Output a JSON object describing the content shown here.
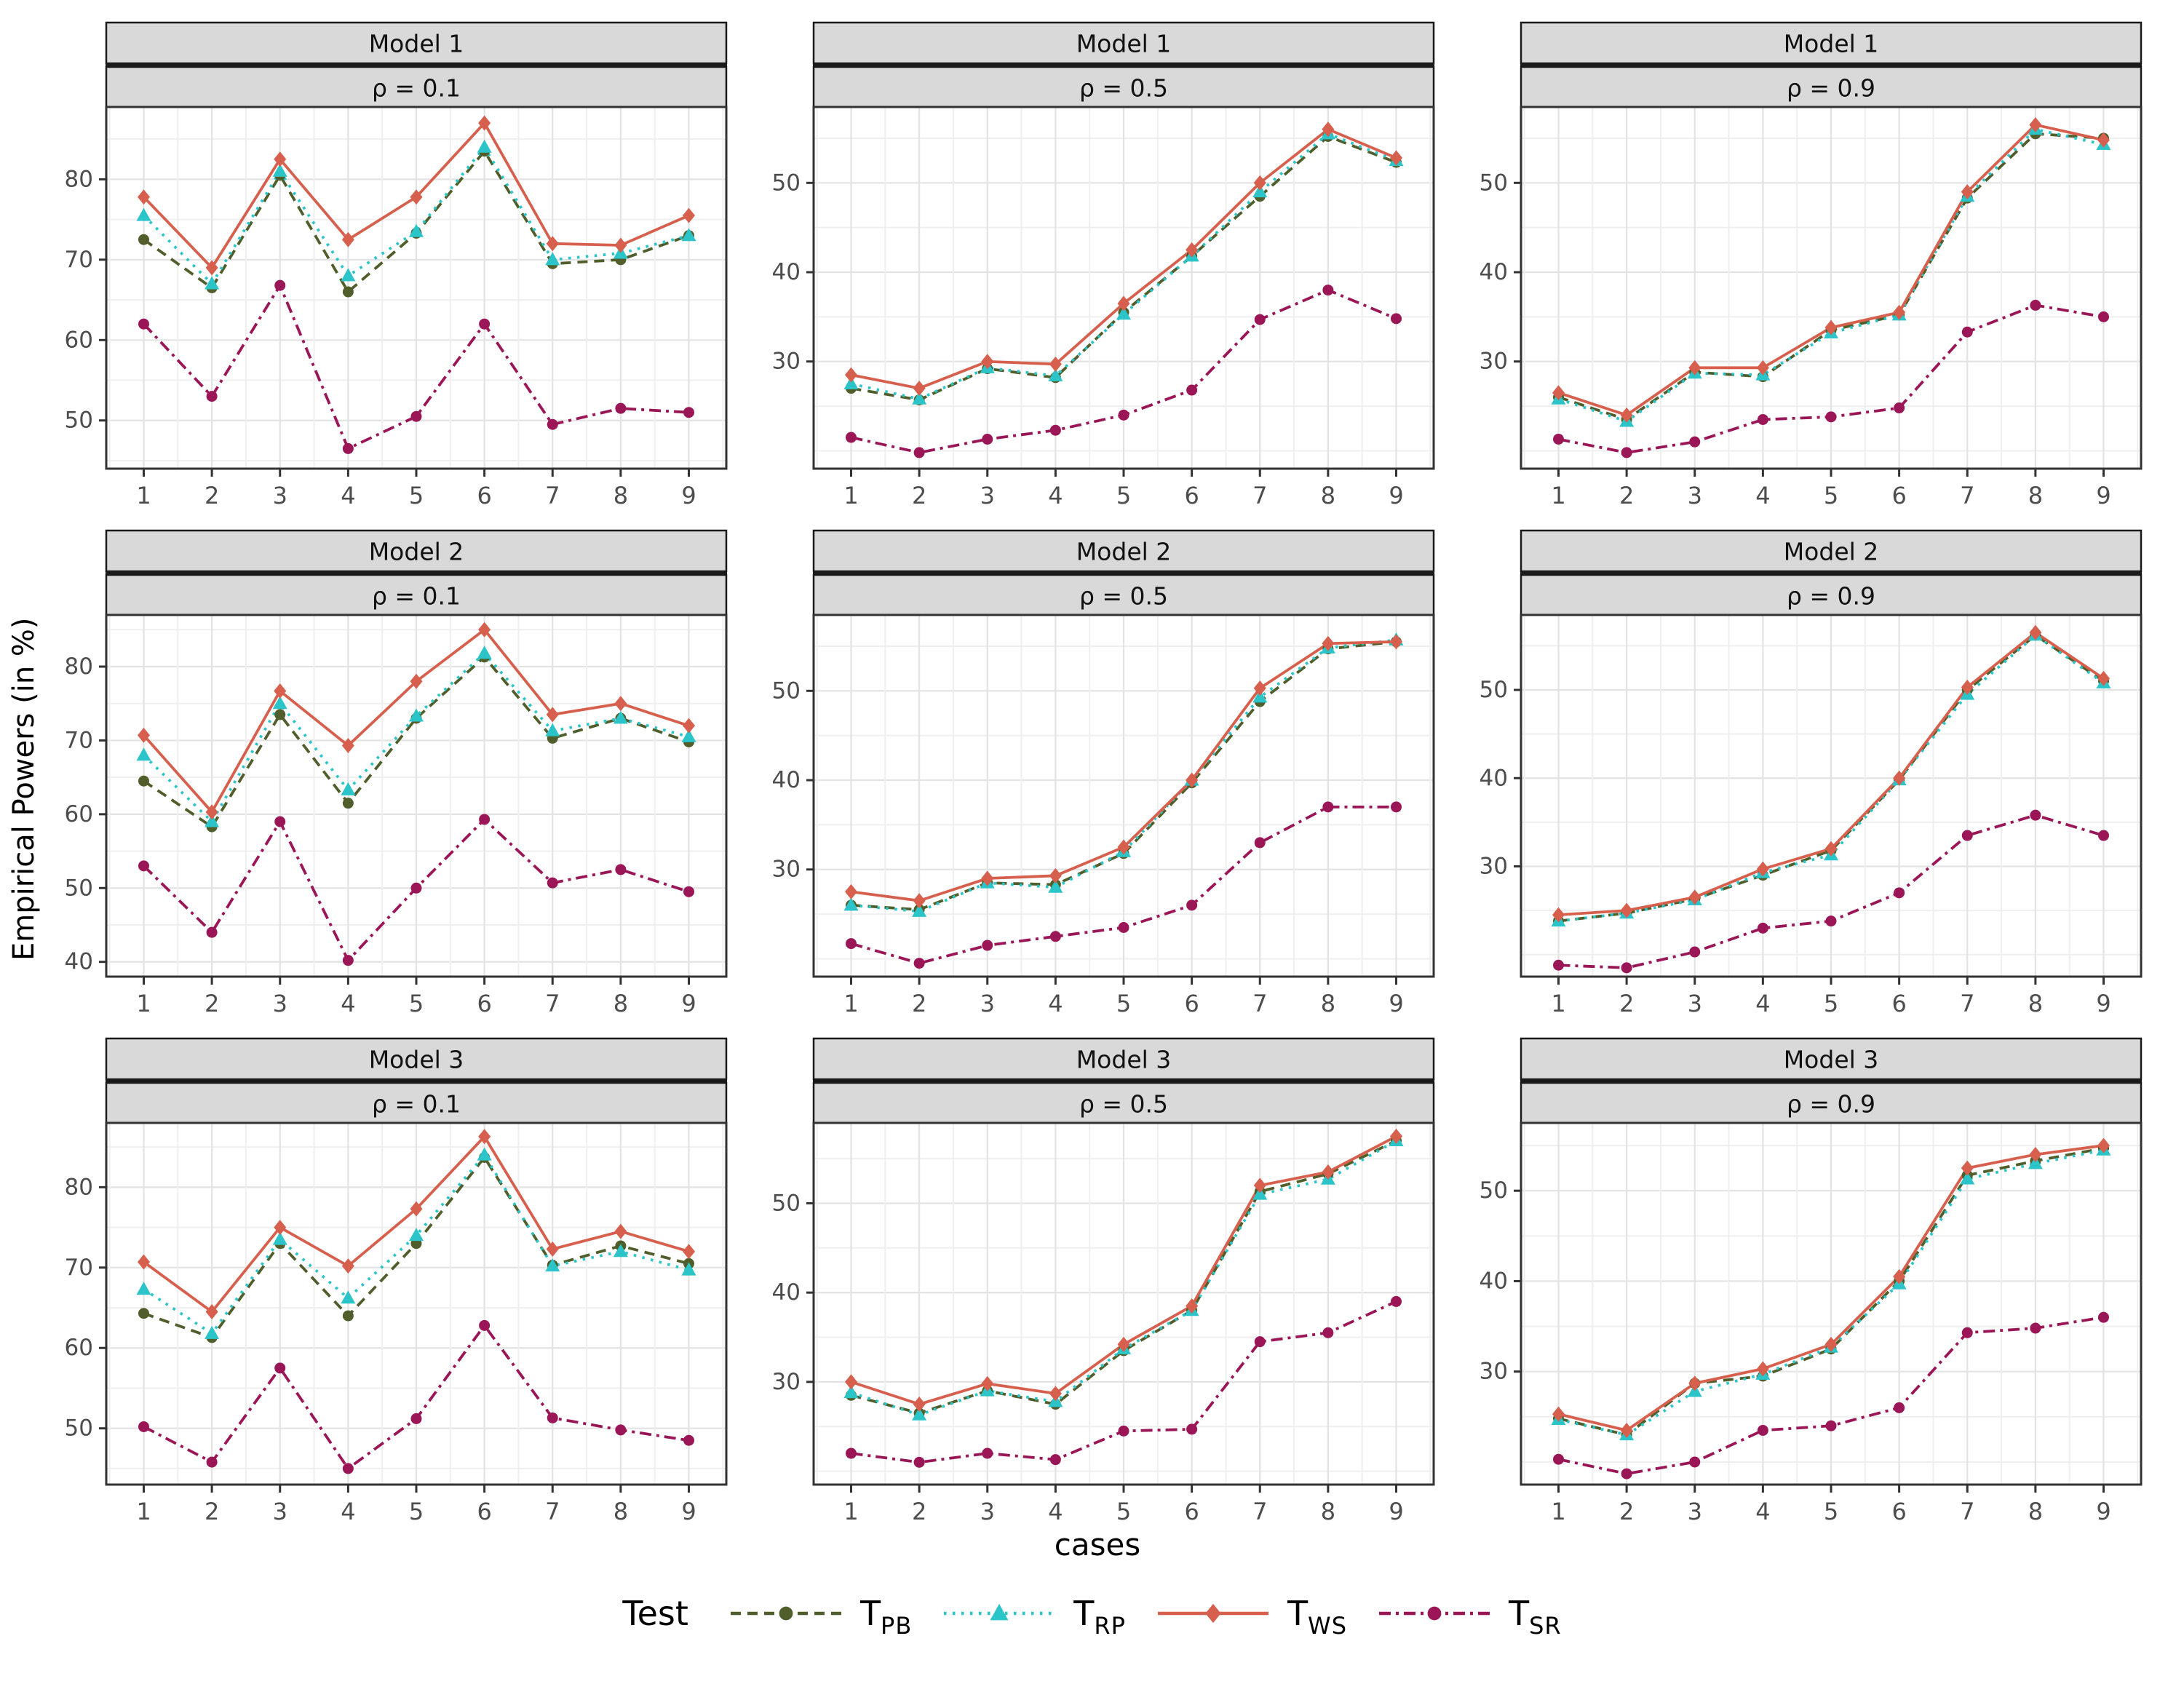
{
  "figure": {
    "y_axis_label": "Empirical Powers (in %)",
    "x_axis_label": "cases",
    "legend": {
      "title": "Test",
      "entries": [
        {
          "id": "TPB",
          "main": "T",
          "sub": "PB",
          "color": "#4F5E2A",
          "dash": "14 9",
          "marker": "circle"
        },
        {
          "id": "TRP",
          "main": "T",
          "sub": "RP",
          "color": "#2BC5C9",
          "dash": "3.5 8.5",
          "marker": "triangle"
        },
        {
          "id": "TWS",
          "main": "T",
          "sub": "WS",
          "color": "#D6604D",
          "dash": "",
          "marker": "diamond"
        },
        {
          "id": "TSR",
          "main": "T",
          "sub": "SR",
          "color": "#9A1656",
          "dash": "16 7 4 7",
          "marker": "circle"
        }
      ]
    }
  },
  "style": {
    "strip_fill": "#D9D9D9",
    "strip_border": "#1A1A1A",
    "panel_border": "#333333",
    "grid_major": "#E3E3E3",
    "grid_minor": "#EFEFEF",
    "tick_color": "#333333",
    "tick_label_color": "#4D4D4D",
    "strip_text_color": "#111111"
  },
  "chart_data": {
    "type": "line",
    "x": [
      1,
      2,
      3,
      4,
      5,
      6,
      7,
      8,
      9
    ],
    "xlim": [
      0.45,
      9.55
    ],
    "grid": true,
    "legend_position": "bottom",
    "panels": [
      {
        "model": "Model 1",
        "rho": "ρ = 0.1",
        "yticks": [
          50,
          60,
          70,
          80
        ],
        "ylim": [
          44,
          89
        ],
        "series": {
          "TPB": [
            72.5,
            66.5,
            80.5,
            66.0,
            73.3,
            83.5,
            69.5,
            70.0,
            73.0
          ],
          "TRP": [
            75.5,
            67.0,
            81.0,
            68.0,
            73.5,
            84.0,
            70.0,
            70.8,
            73.0
          ],
          "TWS": [
            77.8,
            69.0,
            82.5,
            72.5,
            77.8,
            87.0,
            72.0,
            71.8,
            75.5
          ],
          "TSR": [
            62.0,
            53.0,
            66.8,
            46.5,
            50.5,
            62.0,
            49.5,
            51.5,
            51.0
          ]
        }
      },
      {
        "model": "Model 1",
        "rho": "ρ = 0.5",
        "yticks": [
          30,
          40,
          50
        ],
        "ylim": [
          18,
          58.5
        ],
        "series": {
          "TPB": [
            27.0,
            25.7,
            29.2,
            28.2,
            35.5,
            41.8,
            48.5,
            55.2,
            52.3
          ],
          "TRP": [
            27.5,
            25.8,
            29.3,
            28.4,
            35.3,
            41.8,
            49.0,
            55.5,
            52.5
          ],
          "TWS": [
            28.5,
            27.0,
            30.0,
            29.7,
            36.5,
            42.5,
            50.0,
            56.0,
            52.8
          ],
          "TSR": [
            21.5,
            19.8,
            21.3,
            22.3,
            24.0,
            26.8,
            34.7,
            38.0,
            34.8
          ]
        }
      },
      {
        "model": "Model 1",
        "rho": "ρ = 0.9",
        "yticks": [
          30,
          40,
          50
        ],
        "ylim": [
          18,
          58.5
        ],
        "series": {
          "TPB": [
            26.0,
            23.5,
            28.8,
            28.3,
            33.5,
            35.2,
            48.3,
            55.5,
            55.0
          ],
          "TRP": [
            25.8,
            23.3,
            28.7,
            28.5,
            33.2,
            35.2,
            48.5,
            56.0,
            54.3
          ],
          "TWS": [
            26.5,
            24.0,
            29.3,
            29.3,
            33.8,
            35.5,
            49.0,
            56.5,
            54.8
          ],
          "TSR": [
            21.3,
            19.8,
            21.0,
            23.5,
            23.8,
            24.8,
            33.3,
            36.3,
            35.0
          ]
        }
      },
      {
        "model": "Model 2",
        "rho": "ρ = 0.1",
        "yticks": [
          40,
          50,
          60,
          70,
          80
        ],
        "ylim": [
          38,
          87
        ],
        "series": {
          "TPB": [
            64.5,
            58.3,
            73.5,
            61.5,
            73.0,
            81.3,
            70.3,
            73.0,
            69.8
          ],
          "TRP": [
            68.0,
            59.0,
            75.0,
            63.3,
            73.3,
            81.8,
            71.3,
            73.0,
            70.5
          ],
          "TWS": [
            70.7,
            60.3,
            76.7,
            69.3,
            78.0,
            85.0,
            73.5,
            75.0,
            72.0
          ],
          "TSR": [
            53.0,
            44.0,
            59.0,
            40.2,
            50.0,
            59.3,
            50.7,
            52.5,
            49.5
          ]
        }
      },
      {
        "model": "Model 2",
        "rho": "ρ = 0.5",
        "yticks": [
          30,
          40,
          50
        ],
        "ylim": [
          18,
          58.5
        ],
        "series": {
          "TPB": [
            26.0,
            25.5,
            28.5,
            28.3,
            31.8,
            39.7,
            48.8,
            54.7,
            55.5
          ],
          "TRP": [
            26.0,
            25.3,
            28.5,
            28.0,
            32.0,
            40.0,
            49.3,
            54.8,
            55.7
          ],
          "TWS": [
            27.5,
            26.5,
            29.0,
            29.3,
            32.5,
            40.0,
            50.3,
            55.3,
            55.5
          ],
          "TSR": [
            21.7,
            19.5,
            21.5,
            22.5,
            23.5,
            26.0,
            33.0,
            37.0,
            37.0
          ]
        }
      },
      {
        "model": "Model 2",
        "rho": "ρ = 0.9",
        "yticks": [
          30,
          40,
          50
        ],
        "ylim": [
          17.5,
          58.5
        ],
        "series": {
          "TPB": [
            23.8,
            24.7,
            26.3,
            29.0,
            31.8,
            39.8,
            50.0,
            56.2,
            51.0
          ],
          "TRP": [
            23.8,
            24.7,
            26.2,
            29.3,
            31.3,
            39.8,
            49.5,
            56.2,
            50.8
          ],
          "TWS": [
            24.5,
            25.0,
            26.5,
            29.7,
            32.0,
            40.0,
            50.3,
            56.5,
            51.3
          ],
          "TSR": [
            18.8,
            18.5,
            20.3,
            23.0,
            23.8,
            27.0,
            33.5,
            35.8,
            33.5
          ]
        }
      },
      {
        "model": "Model 3",
        "rho": "ρ = 0.1",
        "yticks": [
          50,
          60,
          70,
          80
        ],
        "ylim": [
          43,
          88
        ],
        "series": {
          "TPB": [
            64.3,
            61.3,
            73.0,
            64.0,
            73.0,
            83.7,
            70.3,
            72.7,
            70.5
          ],
          "TRP": [
            67.3,
            61.8,
            73.5,
            66.2,
            74.0,
            84.0,
            70.2,
            72.0,
            69.7
          ],
          "TWS": [
            70.7,
            64.5,
            75.0,
            70.2,
            77.3,
            86.3,
            72.3,
            74.5,
            72.0
          ],
          "TSR": [
            50.2,
            45.8,
            57.5,
            45.0,
            51.2,
            62.8,
            51.3,
            49.8,
            48.5
          ]
        }
      },
      {
        "model": "Model 3",
        "rho": "ρ = 0.5",
        "yticks": [
          30,
          40,
          50
        ],
        "ylim": [
          18.5,
          59
        ],
        "series": {
          "TPB": [
            28.5,
            26.5,
            29.0,
            27.5,
            33.5,
            38.0,
            51.3,
            53.3,
            57.0
          ],
          "TRP": [
            28.8,
            26.3,
            29.0,
            27.8,
            33.7,
            38.0,
            51.0,
            52.7,
            57.0
          ],
          "TWS": [
            30.0,
            27.5,
            29.8,
            28.7,
            34.2,
            38.5,
            52.0,
            53.5,
            57.5
          ],
          "TSR": [
            22.0,
            21.0,
            22.0,
            21.3,
            24.5,
            24.7,
            34.5,
            35.5,
            39.0
          ]
        }
      },
      {
        "model": "Model 3",
        "rho": "ρ = 0.9",
        "yticks": [
          30,
          40,
          50
        ],
        "ylim": [
          17.5,
          57.5
        ],
        "series": {
          "TPB": [
            24.8,
            23.0,
            28.7,
            29.5,
            32.5,
            40.0,
            51.7,
            53.3,
            54.7
          ],
          "TRP": [
            24.7,
            23.0,
            27.8,
            29.7,
            32.7,
            39.7,
            51.3,
            53.0,
            54.5
          ],
          "TWS": [
            25.3,
            23.5,
            28.7,
            30.3,
            33.0,
            40.5,
            52.5,
            54.0,
            55.0
          ],
          "TSR": [
            20.3,
            18.7,
            20.0,
            23.5,
            24.0,
            26.0,
            34.3,
            34.8,
            36.0
          ]
        }
      }
    ]
  }
}
